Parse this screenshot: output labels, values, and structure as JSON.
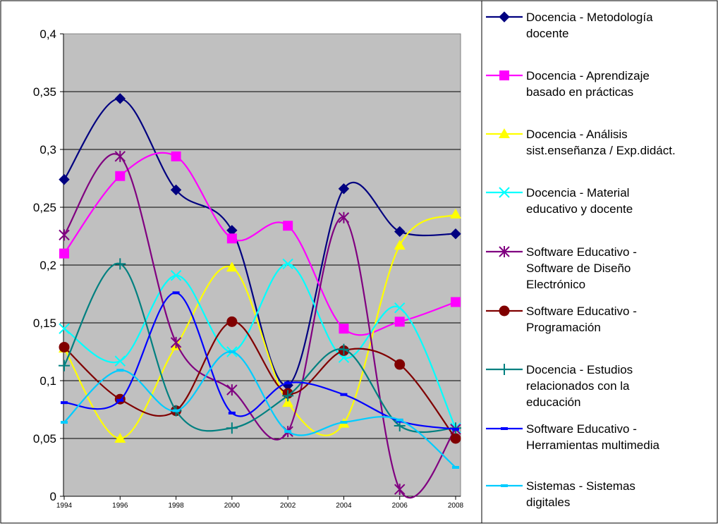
{
  "chart_data": {
    "type": "line",
    "smooth": true,
    "x": [
      "1994",
      "1996",
      "1998",
      "2000",
      "2002",
      "2004",
      "2006",
      "2008"
    ],
    "ylim": [
      0,
      0.4
    ],
    "y_ticks": [
      "0",
      "0,05",
      "0,1",
      "0,15",
      "0,2",
      "0,25",
      "0,3",
      "0,35",
      "0,4"
    ],
    "plot_background": "#c0c0c0",
    "grid": true,
    "legend_position": "right",
    "series": [
      {
        "name": "Docencia - Metodología docente",
        "name_lines": [
          "Docencia - Metodología",
          "docente"
        ],
        "color": "#000080",
        "marker": "diamond",
        "values": [
          0.274,
          0.344,
          0.265,
          0.23,
          0.096,
          0.266,
          0.229,
          0.227
        ]
      },
      {
        "name": "Docencia - Aprendizaje basado en prácticas",
        "name_lines": [
          "Docencia - Aprendizaje",
          "basado en prácticas"
        ],
        "color": "#ff00ff",
        "marker": "square",
        "values": [
          0.21,
          0.277,
          0.294,
          0.223,
          0.234,
          0.145,
          0.151,
          0.168
        ]
      },
      {
        "name": "Docencia - Análisis sist.enseñanza / Exp.didáct.",
        "name_lines": [
          "Docencia - Análisis",
          "sist.enseñanza / Exp.didáct."
        ],
        "color": "#ffff00",
        "marker": "triangle",
        "values": [
          0.128,
          0.05,
          0.13,
          0.198,
          0.081,
          0.063,
          0.217,
          0.244
        ]
      },
      {
        "name": "Docencia - Material educativo y docente",
        "name_lines": [
          "Docencia - Material",
          "educativo y docente"
        ],
        "color": "#00ffff",
        "marker": "x",
        "values": [
          0.145,
          0.117,
          0.191,
          0.125,
          0.201,
          0.12,
          0.163,
          0.059
        ]
      },
      {
        "name": "Software Educativo - Software de Diseño Electrónico",
        "name_lines": [
          "Software Educativo -",
          "Software de Diseño",
          "Electrónico"
        ],
        "color": "#800080",
        "marker": "star",
        "values": [
          0.226,
          0.294,
          0.133,
          0.092,
          0.056,
          0.241,
          0.006,
          0.058
        ]
      },
      {
        "name": "Software Educativo - Programación",
        "name_lines": [
          "Software Educativo -",
          "Programación"
        ],
        "color": "#800000",
        "marker": "circle",
        "values": [
          0.129,
          0.084,
          0.074,
          0.151,
          0.089,
          0.126,
          0.114,
          0.05
        ]
      },
      {
        "name": "Docencia - Estudios relacionados con la educación",
        "name_lines": [
          "Docencia - Estudios",
          "relacionados con la",
          "educación"
        ],
        "color": "#008080",
        "marker": "plus",
        "values": [
          0.113,
          0.201,
          0.074,
          0.059,
          0.087,
          0.127,
          0.061,
          0.059
        ]
      },
      {
        "name": "Software Educativo - Herramientas multimedia",
        "name_lines": [
          "Software Educativo -",
          "Herramientas multimedia"
        ],
        "color": "#0000ff",
        "marker": "dash",
        "values": [
          0.081,
          0.083,
          0.176,
          0.072,
          0.098,
          0.088,
          0.065,
          0.058
        ]
      },
      {
        "name": "Sistemas - Sistemas digitales",
        "name_lines": [
          "Sistemas - Sistemas",
          "digitales"
        ],
        "color": "#00ccff",
        "marker": "dash",
        "values": [
          0.064,
          0.109,
          0.074,
          0.125,
          0.056,
          0.064,
          0.066,
          0.025
        ]
      }
    ]
  }
}
